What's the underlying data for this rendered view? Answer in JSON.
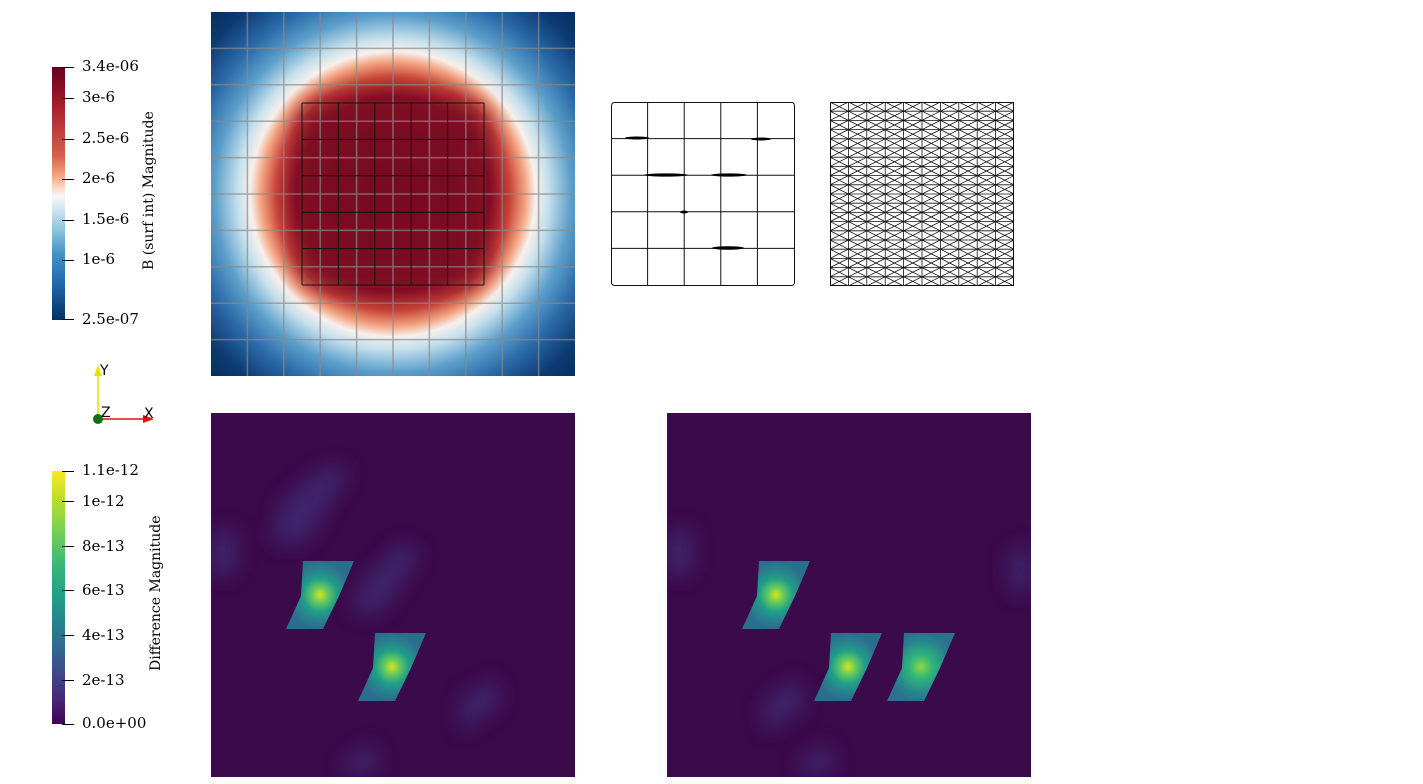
{
  "top_colorbar": {
    "title": "B (surf int) Magnitude",
    "ticks": [
      "3.4e-06",
      "3e-6",
      "2.5e-6",
      "2e-6",
      "1.5e-6",
      "1e-6",
      "2.5e-07"
    ],
    "colors": [
      "#67001f",
      "#b2182b",
      "#d6604d",
      "#f4a582",
      "#fddbc7",
      "#f7f7f7",
      "#d1e5f0",
      "#92c5de",
      "#4393c3",
      "#2166ac",
      "#053061"
    ]
  },
  "axes_widget": {
    "y_label": "Y",
    "z_label": "Z",
    "x_label": "X",
    "y_color": "#e8e000",
    "x_color": "#e01010",
    "z_color": "#0a6e14"
  },
  "bottom_colorbar": {
    "title": "Difference Magnitude",
    "ticks": [
      "1.1e-12",
      "1e-12",
      "8e-13",
      "6e-13",
      "4e-13",
      "2e-13",
      "0.0e+00"
    ],
    "colors": [
      "#fde725",
      "#b5de2b",
      "#6ece58",
      "#35b779",
      "#1f9e89",
      "#26828e",
      "#31688e",
      "#3e4989",
      "#482878",
      "#440154"
    ]
  },
  "panels": {
    "field_plot": "magnetic-field-heatmap",
    "coarse_mesh": "coarse-wireframe-mesh",
    "fine_mesh": "fine-wireframe-mesh",
    "diff_left": "difference-heatmap-1",
    "diff_right": "difference-heatmap-2"
  }
}
